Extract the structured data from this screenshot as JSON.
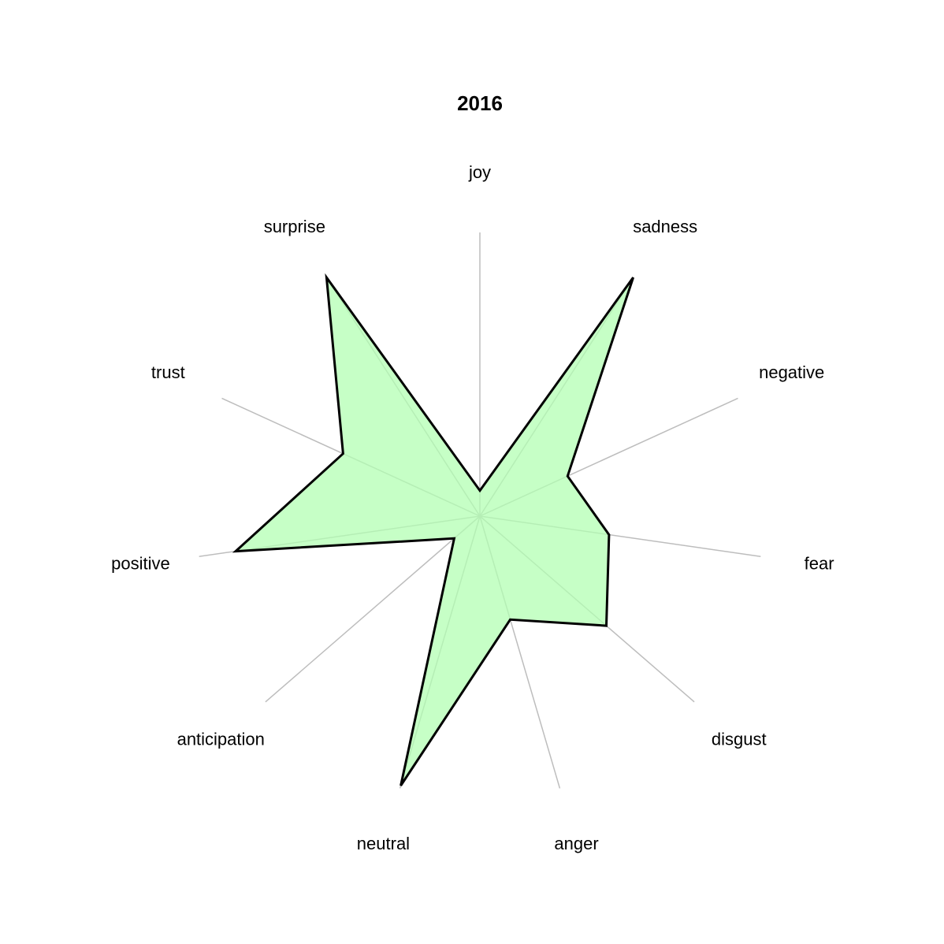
{
  "chart_data": {
    "type": "radar",
    "title": "2016",
    "axes": [
      "joy",
      "sadness",
      "negative",
      "fear",
      "disgust",
      "anger",
      "neutral",
      "anticipation",
      "positive",
      "trust",
      "surprise"
    ],
    "values": [
      0.09,
      1.0,
      0.34,
      0.46,
      0.59,
      0.38,
      0.99,
      0.12,
      0.87,
      0.53,
      1.0
    ],
    "rmax": 1.0,
    "fill_color": "#b3ffb3",
    "line_color": "#000000",
    "spoke_color": "#bdbdbd",
    "grid": false
  }
}
